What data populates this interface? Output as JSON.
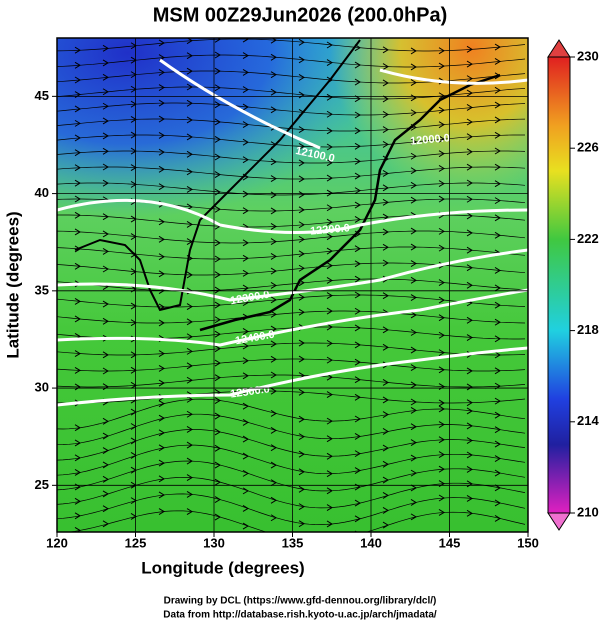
{
  "header": {
    "title": "MSM 00Z29Jun2026 (200.0hPa)"
  },
  "map": {
    "xlabel": "Longitude (degrees)",
    "ylabel": "Latitude  (degrees)",
    "xlim": [
      120,
      150
    ],
    "ylim": [
      22.6,
      48
    ],
    "xticks": [
      120,
      125,
      130,
      135,
      140,
      145,
      150
    ],
    "yticks": [
      25,
      30,
      35,
      40,
      45
    ],
    "grid": true
  },
  "contour_labels": [
    "12000.0",
    "12100.0",
    "12200.0",
    "12300.0",
    "12400.0",
    "12500.0"
  ],
  "colorbar": {
    "lim": [
      210,
      230
    ],
    "ticks": [
      210,
      214,
      218,
      222,
      226,
      230
    ]
  },
  "credits": [
    "Drawing by DCL (https://www.gfd-dennou.org/library/dcl/)",
    "Data from http://database.rish.kyoto-u.ac.jp/arch/jmadata/"
  ]
}
